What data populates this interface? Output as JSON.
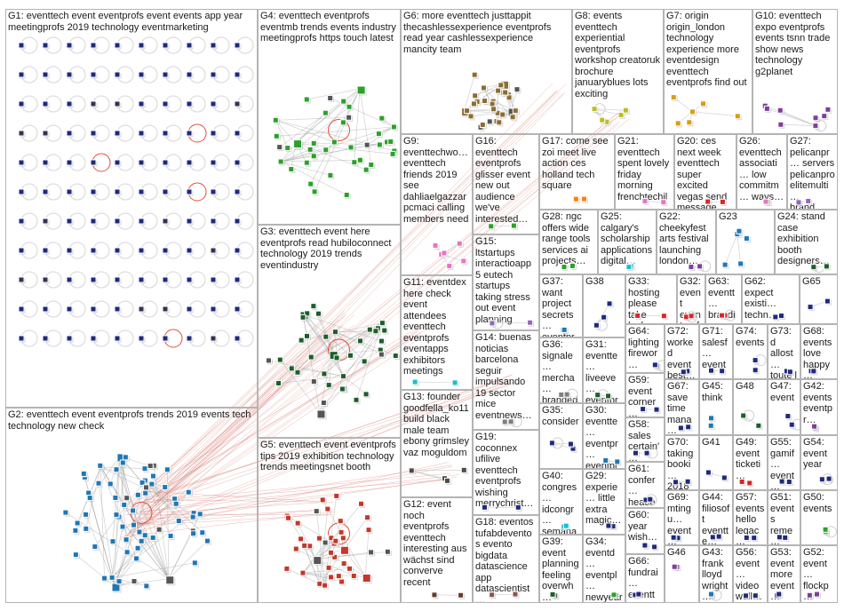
{
  "groups": [
    {
      "id": "G1",
      "label": "G1: eventtech event eventprofs event events app year meetingprofs 2019 technology eventmarketing",
      "color": "#1f2a7a"
    },
    {
      "id": "G2",
      "label": "G2: eventtech event eventprofs trends 2019 events tech technology new check",
      "color": "#1f77b4"
    },
    {
      "id": "G3",
      "label": "G3: eventtech event here eventprofs read hubiloconnect technology 2019 trends eventindustry",
      "color": "#1d5e2a"
    },
    {
      "id": "G4",
      "label": "G4: eventtech eventprofs eventmb trends events industry meetingprofs https touch latest",
      "color": "#2ca02c"
    },
    {
      "id": "G5",
      "label": "G5: eventtech event eventprofs tips 2019 exhibition technology trends meetingsnet booth",
      "color": "#c0392b"
    },
    {
      "id": "G6",
      "label": "G6: more eventtech justtappit thecashlessexperience eventprofs read year cashlessexperience mancity team",
      "color": "#8c6d31"
    },
    {
      "id": "G7",
      "label": "G7: origin origin_london technology experience more eventdesign eventtech eventprofs find out",
      "color": "#d4a017"
    },
    {
      "id": "G8",
      "label": "G8: events eventtech experiential eventprofs workshop creatoruk brochure januaryblues lots exciting",
      "color": "#bcbd22"
    },
    {
      "id": "G9",
      "label": "G9: eventtechwo… eventtech friends 2019 see dahliaelgazzar pcmaci calling members need",
      "color": "#e377c2"
    },
    {
      "id": "G10",
      "label": "G10: eventtech expo eventprofs events tsnn trade show news technology g2planet",
      "color": "#7f3f98"
    },
    {
      "id": "G11",
      "label": "G11: eventdex here check event attendees eventtech eventprofs eventapps exhibitors meetings",
      "color": "#17becf"
    },
    {
      "id": "G12",
      "label": "G12: event noch eventprofs eventtech interesting aus wächst sind converve recent",
      "color": "#6b3a2a"
    },
    {
      "id": "G13",
      "label": "G13: founder goodfella_ko11 build black male team ebony grimsley vaz moguldom",
      "color": "#4b4b4b"
    },
    {
      "id": "G14",
      "label": "G14: buenas noticias barcelona seguir impulsando 19 sector mice eventnews…",
      "color": "#7f7f7f"
    },
    {
      "id": "G15",
      "label": "G15: ltstartups interactioapp 5 eutech startups taking stress out event planning",
      "color": "#9467bd"
    },
    {
      "id": "G16",
      "label": "G16: eventtech eventprofs glisser event new out audience we've interested…",
      "color": "#2ca02c"
    },
    {
      "id": "G17",
      "label": "G17: come see zoi meet live action ces holland tech square",
      "color": "#ff7f0e"
    },
    {
      "id": "G18",
      "label": "G18: eventos tufabdeventos evento bigdata datascience app datascientist…",
      "color": "#8c564b"
    },
    {
      "id": "G19",
      "label": "G19: coconnex ufilive eventtech eventprofs wishing merrychrist…",
      "color": "#1f2a7a"
    },
    {
      "id": "G20",
      "label": "G20: ces next week eventtech super excited vegas send message…",
      "color": "#d62728"
    },
    {
      "id": "G21",
      "label": "G21: eventtech spent lovely friday morning frenchtechil…",
      "color": "#e377c2"
    },
    {
      "id": "G22",
      "label": "G22: cheekyfest arts festival launching london…",
      "color": "#7f3f98"
    },
    {
      "id": "G23",
      "label": "G23",
      "color": "#1f77b4"
    },
    {
      "id": "G24",
      "label": "G24: stand case exhibition booth designers…",
      "color": "#1d5e2a"
    },
    {
      "id": "G25",
      "label": "G25: calgary's scholarship applications digital…",
      "color": "#17becf"
    },
    {
      "id": "G26",
      "label": "G26: eventtech associati… low commitm… ways…",
      "color": "#e377c2"
    },
    {
      "id": "G27",
      "label": "G27: pelicanpr… servers pelicanpro elitemulti… brand…",
      "color": "#9467bd"
    },
    {
      "id": "G28",
      "label": "G28: ngc offers wide range tools services ai projects…",
      "color": "#2ca02c"
    },
    {
      "id": "G29",
      "label": "G29: experie… little extra magic…",
      "color": "#1f2a7a"
    },
    {
      "id": "G30",
      "label": "G30: eventte… eventpr… eventpr… another…",
      "color": "#1f77b4"
    },
    {
      "id": "G31",
      "label": "G31: eventte… liveeve… eventpr… confere…",
      "color": "#1d5e2a"
    },
    {
      "id": "G32",
      "label": "G32: event eventprofs eventpros bizbash…",
      "color": "#d62728"
    },
    {
      "id": "G33",
      "label": "G33: hosting please take look…",
      "color": "#d62728"
    },
    {
      "id": "G34",
      "label": "G34: eventd… eventpl… newyear newyea…",
      "color": "#2ca02c"
    },
    {
      "id": "G35",
      "label": "G35: consider",
      "color": "#1f2a7a"
    },
    {
      "id": "G36",
      "label": "G36: signale… mercha… branded eventpr…",
      "color": "#7f7f7f"
    },
    {
      "id": "G37",
      "label": "G37: want project secrets… eventpr…",
      "color": "#1f77b4"
    },
    {
      "id": "G38",
      "label": "G38",
      "color": "#1f2a7a"
    },
    {
      "id": "G39",
      "label": "G39: event planning feeling overwh…",
      "color": "#1d5e2a"
    },
    {
      "id": "G40",
      "label": "G40: congres… idcongr… semana os…",
      "color": "#17becf"
    },
    {
      "id": "G41",
      "label": "G41",
      "color": "#1f2a7a"
    },
    {
      "id": "G42",
      "label": "G42: events eventpr…",
      "color": "#7f3f98"
    },
    {
      "id": "G43",
      "label": "G43: frank lloyd wright…",
      "color": "#1f77b4"
    },
    {
      "id": "G44",
      "label": "G44: filiosoft eventte…",
      "color": "#1f2a7a"
    },
    {
      "id": "G45",
      "label": "G45: think",
      "color": "#1f77b4"
    },
    {
      "id": "G46",
      "label": "G46",
      "color": "#7f3f98"
    },
    {
      "id": "G47",
      "label": "G47: event",
      "color": "#1f2a7a"
    },
    {
      "id": "G48",
      "label": "G48",
      "color": "#1d5e2a"
    },
    {
      "id": "G49",
      "label": "G49: event ticketi…",
      "color": "#d62728"
    },
    {
      "id": "G50",
      "label": "G50: events",
      "color": "#2ca02c"
    },
    {
      "id": "G51",
      "label": "G51: events reme… partn…",
      "color": "#1f2a7a"
    },
    {
      "id": "G52",
      "label": "G52: event… flockp…",
      "color": "#7f3f98"
    },
    {
      "id": "G53",
      "label": "G53: event more event…",
      "color": "#1f2a7a"
    },
    {
      "id": "G54",
      "label": "G54: event year",
      "color": "#1f2a7a"
    },
    {
      "id": "G55",
      "label": "G55: gamif… event… chan…",
      "color": "#1f2a7a"
    },
    {
      "id": "G56",
      "label": "G56: event… video wall…",
      "color": "#1f2a7a"
    },
    {
      "id": "G57",
      "label": "G57: events hello legac…",
      "color": "#1f2a7a"
    },
    {
      "id": "G58",
      "label": "G58: sales certain'…",
      "color": "#1f2a7a"
    },
    {
      "id": "G59",
      "label": "G59: event corner…",
      "color": "#1f2a7a"
    },
    {
      "id": "G60",
      "label": "G60: year wish…",
      "color": "#1f2a7a"
    },
    {
      "id": "G61",
      "label": "G61: confer… heade…",
      "color": "#1f2a7a"
    },
    {
      "id": "G62",
      "label": "G62: expect existi… techn…",
      "color": "#1f2a7a"
    },
    {
      "id": "G63",
      "label": "G63: eventt… brandi… demo…",
      "color": "#d62728"
    },
    {
      "id": "G64",
      "label": "G64: lighting firewor…",
      "color": "#1f2a7a"
    },
    {
      "id": "G65",
      "label": "G65",
      "color": "#1f2a7a"
    },
    {
      "id": "G66",
      "label": "G66: fundrai… eventt…",
      "color": "#1f2a7a"
    },
    {
      "id": "G67",
      "label": "G67: save time mana…",
      "color": "#1f2a7a"
    },
    {
      "id": "G68",
      "label": "G68: events love happy…",
      "color": "#1f2a7a"
    },
    {
      "id": "G69",
      "label": "G69: mtingu… event… eventt…",
      "color": "#1f2a7a"
    },
    {
      "id": "G70",
      "label": "G70: taking booki… 2018…",
      "color": "#1f2a7a"
    },
    {
      "id": "G71",
      "label": "G71: salesf… event",
      "color": "#1f2a7a"
    },
    {
      "id": "G72",
      "label": "G72: worked event best…",
      "color": "#1f2a7a"
    },
    {
      "id": "G73",
      "label": "G73: d allost… toute l équip…",
      "color": "#1f2a7a"
    },
    {
      "id": "G74",
      "label": "G74: events",
      "color": "#1f2a7a"
    }
  ]
}
